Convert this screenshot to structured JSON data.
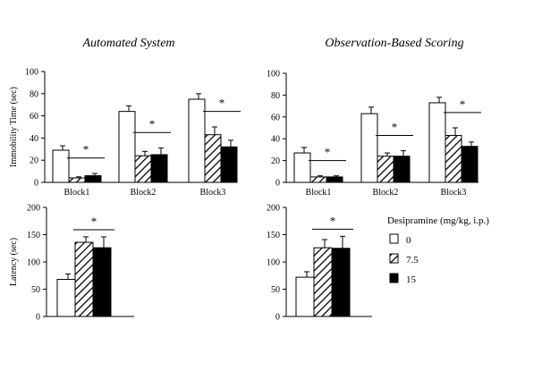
{
  "figure": {
    "column_titles": [
      "Automated System",
      "Observation-Based Scoring"
    ]
  },
  "legend": {
    "title": "Desipramine (mg/kg, i.p.)",
    "items": [
      {
        "label": "0",
        "fill": "white"
      },
      {
        "label": "7.5",
        "fill": "hatch"
      },
      {
        "label": "15",
        "fill": "black"
      }
    ]
  },
  "chart_data": [
    {
      "id": "automated-immobility",
      "type": "bar",
      "title": "Automated System",
      "ylabel": "Immobility Time (sec)",
      "xlabel": "",
      "ylim": [
        0,
        100
      ],
      "yticks": [
        0,
        20,
        40,
        60,
        80,
        100
      ],
      "categories": [
        "Block1",
        "Block2",
        "Block3"
      ],
      "series": [
        {
          "name": "0",
          "fill": "white",
          "values": [
            29,
            64,
            75
          ],
          "errors": [
            4,
            5,
            5
          ]
        },
        {
          "name": "7.5",
          "fill": "hatch",
          "values": [
            4,
            24,
            43
          ],
          "errors": [
            1,
            4,
            7
          ]
        },
        {
          "name": "15",
          "fill": "black",
          "values": [
            6,
            25,
            32
          ],
          "errors": [
            2,
            6,
            6
          ]
        }
      ],
      "significance": [
        "*",
        "*",
        "*"
      ]
    },
    {
      "id": "observation-immobility",
      "type": "bar",
      "title": "Observation-Based Scoring",
      "ylabel": "",
      "xlabel": "",
      "ylim": [
        0,
        100
      ],
      "yticks": [
        0,
        20,
        40,
        60,
        80,
        100
      ],
      "categories": [
        "Block1",
        "Block2",
        "Block3"
      ],
      "series": [
        {
          "name": "0",
          "fill": "white",
          "values": [
            27,
            63,
            73
          ],
          "errors": [
            5,
            6,
            5
          ]
        },
        {
          "name": "7.5",
          "fill": "hatch",
          "values": [
            5,
            24,
            43
          ],
          "errors": [
            1,
            3,
            7
          ]
        },
        {
          "name": "15",
          "fill": "black",
          "values": [
            5,
            24,
            33
          ],
          "errors": [
            1,
            5,
            4
          ]
        }
      ],
      "significance": [
        "*",
        "*",
        "*"
      ]
    },
    {
      "id": "automated-latency",
      "type": "bar",
      "title": "",
      "ylabel": "Latency (sec)",
      "xlabel": "",
      "ylim": [
        0,
        200
      ],
      "yticks": [
        0,
        50,
        100,
        150,
        200
      ],
      "categories": [
        ""
      ],
      "series": [
        {
          "name": "0",
          "fill": "white",
          "values": [
            68
          ],
          "errors": [
            10
          ]
        },
        {
          "name": "7.5",
          "fill": "hatch",
          "values": [
            136
          ],
          "errors": [
            10
          ]
        },
        {
          "name": "15",
          "fill": "black",
          "values": [
            126
          ],
          "errors": [
            20
          ]
        }
      ],
      "significance": [
        "*"
      ]
    },
    {
      "id": "observation-latency",
      "type": "bar",
      "title": "",
      "ylabel": "",
      "xlabel": "",
      "ylim": [
        0,
        200
      ],
      "yticks": [
        0,
        50,
        100,
        150,
        200
      ],
      "categories": [
        ""
      ],
      "series": [
        {
          "name": "0",
          "fill": "white",
          "values": [
            72
          ],
          "errors": [
            10
          ]
        },
        {
          "name": "7.5",
          "fill": "hatch",
          "values": [
            126
          ],
          "errors": [
            15
          ]
        },
        {
          "name": "15",
          "fill": "black",
          "values": [
            125
          ],
          "errors": [
            22
          ]
        }
      ],
      "significance": [
        "*"
      ]
    }
  ]
}
